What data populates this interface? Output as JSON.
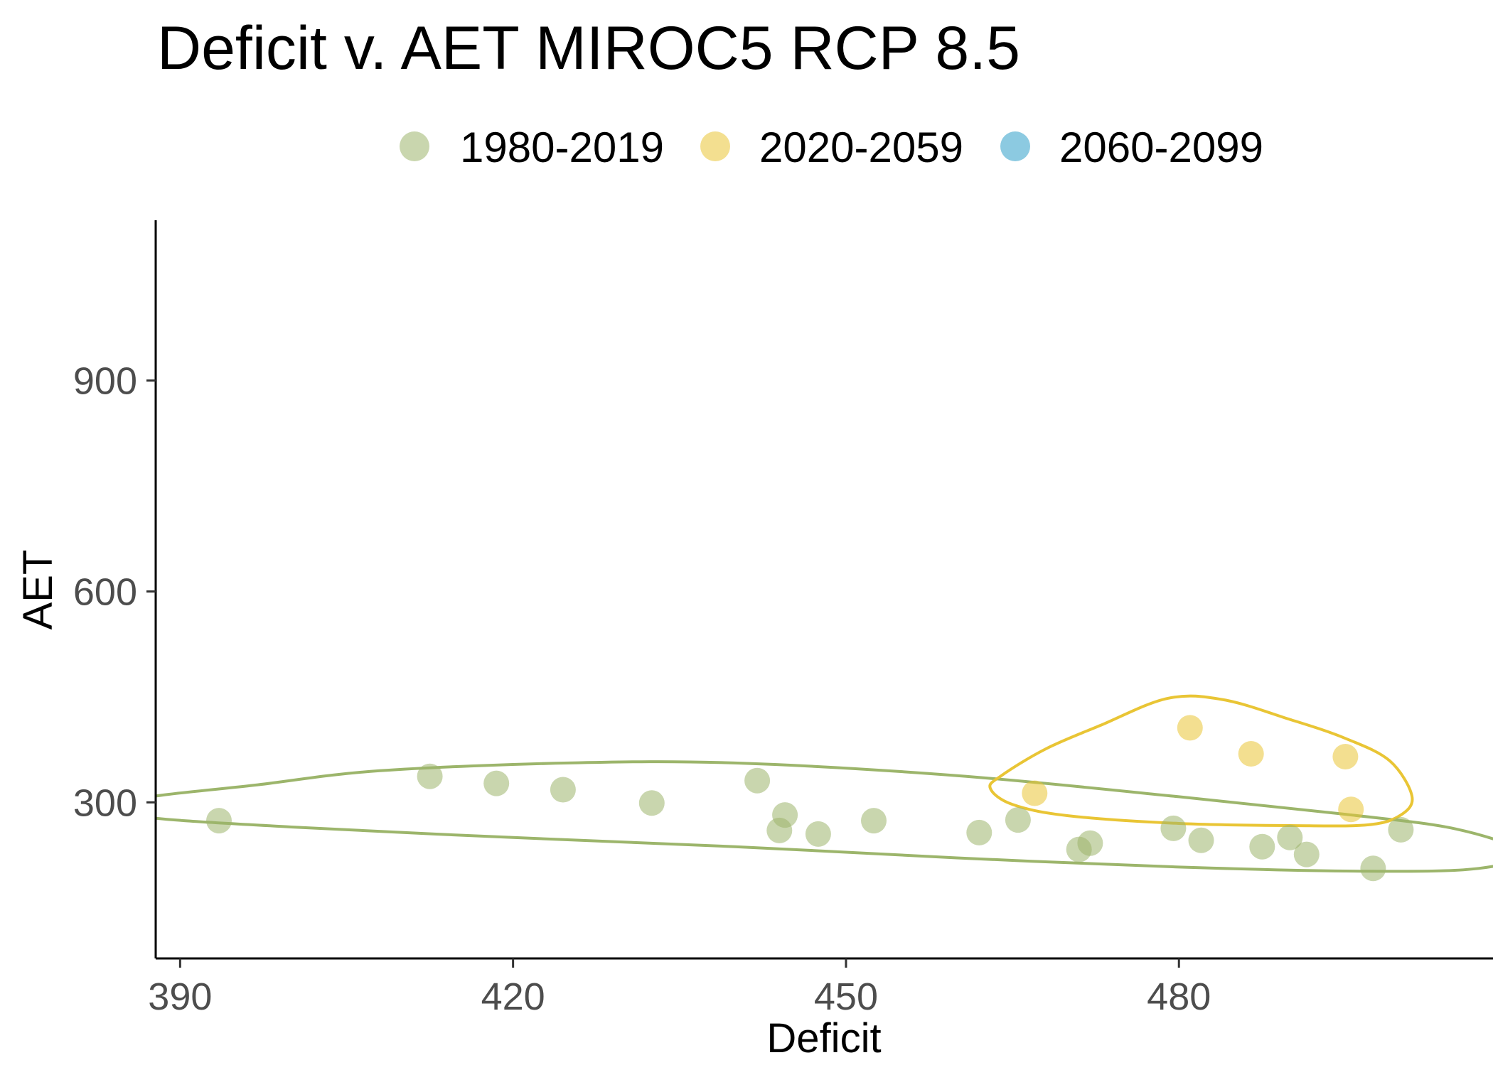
{
  "chart_data": {
    "type": "scatter",
    "title": "Deficit v. AET MIROC5 RCP 8.5",
    "xlabel": "Deficit",
    "ylabel": "AET",
    "xlim": [
      387.8,
      508.3
    ],
    "ylim": [
      78,
      1128
    ],
    "xticks": [
      390,
      420,
      450,
      480
    ],
    "yticks": [
      300,
      600,
      900
    ],
    "grid": false,
    "legend_position": "top",
    "series": [
      {
        "name": "1980-2019",
        "color": "#9CB56B",
        "points": [
          [
            393.5,
            274
          ],
          [
            412.5,
            337
          ],
          [
            418.5,
            327
          ],
          [
            424.5,
            318
          ],
          [
            432.5,
            299
          ],
          [
            442,
            331
          ],
          [
            444.5,
            282
          ],
          [
            444,
            260
          ],
          [
            447.5,
            255
          ],
          [
            452.5,
            274
          ],
          [
            462,
            257
          ],
          [
            465.5,
            275
          ],
          [
            471,
            233
          ],
          [
            472,
            242
          ],
          [
            479.5,
            263
          ],
          [
            482,
            246
          ],
          [
            487.5,
            237
          ],
          [
            490,
            250
          ],
          [
            491.5,
            226
          ],
          [
            497.5,
            206
          ],
          [
            500,
            261
          ]
        ]
      },
      {
        "name": "2020-2059",
        "color": "#E9C535",
        "points": [
          [
            467,
            313
          ],
          [
            481,
            406
          ],
          [
            486.5,
            369
          ],
          [
            495,
            365
          ],
          [
            495.5,
            290
          ]
        ]
      },
      {
        "name": "2060-2099",
        "color": "#2E9FC8",
        "points": []
      }
    ],
    "ellipses": [
      {
        "series": "1980-2019",
        "points": [
          [
            386,
            304
          ],
          [
            397,
            325
          ],
          [
            408,
            345
          ],
          [
            425,
            356
          ],
          [
            440,
            356
          ],
          [
            460,
            338
          ],
          [
            480,
            308
          ],
          [
            495,
            283
          ],
          [
            505,
            262
          ],
          [
            511,
            228
          ],
          [
            507,
            206
          ],
          [
            497,
            202
          ],
          [
            480,
            208
          ],
          [
            460,
            221
          ],
          [
            440,
            237
          ],
          [
            420,
            250
          ],
          [
            400,
            265
          ],
          [
            386,
            281
          ]
        ]
      },
      {
        "series": "2020-2059",
        "points": [
          [
            464,
            338
          ],
          [
            468,
            376
          ],
          [
            473,
            410
          ],
          [
            479,
            448
          ],
          [
            484,
            446
          ],
          [
            490,
            418
          ],
          [
            495,
            391
          ],
          [
            499,
            359
          ],
          [
            501,
            309
          ],
          [
            500,
            282
          ],
          [
            497,
            268
          ],
          [
            490,
            267
          ],
          [
            480,
            270
          ],
          [
            470,
            281
          ],
          [
            465,
            297
          ],
          [
            463,
            320
          ]
        ]
      }
    ]
  }
}
